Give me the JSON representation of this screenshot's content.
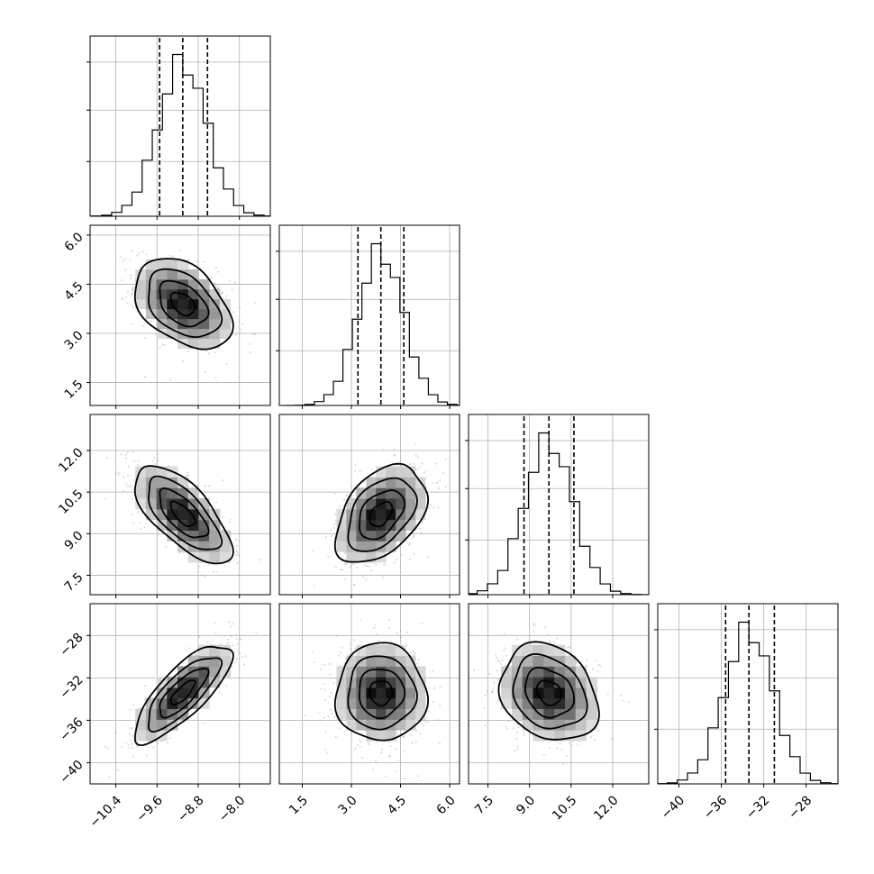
{
  "chart_data": {
    "type": "corner",
    "parameters": [
      {
        "index": 0,
        "range": [
          -10.9,
          -7.4
        ],
        "ticks": [
          -10.4,
          -9.6,
          -8.8,
          -8.0
        ],
        "tick_labels": [
          "−10.4",
          "−9.6",
          "−8.8",
          "−8.0"
        ],
        "quantiles": [
          -9.55,
          -9.1,
          -8.62
        ],
        "median": -9.1,
        "sigma": 0.47
      },
      {
        "index": 1,
        "range": [
          0.8,
          6.3
        ],
        "ticks": [
          1.5,
          3.0,
          4.5,
          6.0
        ],
        "tick_labels": [
          "1.5",
          "3.0",
          "4.5",
          "6.0"
        ],
        "quantiles": [
          3.2,
          3.9,
          4.6
        ],
        "median": 3.9,
        "sigma": 0.69
      },
      {
        "index": 2,
        "range": [
          6.8,
          13.3
        ],
        "ticks": [
          7.5,
          9.0,
          10.5,
          12.0
        ],
        "tick_labels": [
          "7.5",
          "9.0",
          "10.5",
          "12.0"
        ],
        "quantiles": [
          8.8,
          9.7,
          10.6
        ],
        "median": 9.7,
        "sigma": 0.88
      },
      {
        "index": 3,
        "range": [
          -42,
          -25
        ],
        "ticks": [
          -40,
          -36,
          -32,
          -28
        ],
        "tick_labels": [
          "−40",
          "−36",
          "−32",
          "−28"
        ],
        "quantiles": [
          -35.6,
          -33.4,
          -31.0
        ],
        "median": -33.4,
        "sigma": 2.3
      }
    ],
    "correlations": {
      "1_0": -0.4,
      "2_0": -0.68,
      "2_1": 0.42,
      "3_0": 0.78,
      "3_1": 0.0,
      "3_2": -0.22
    },
    "contour_sigma_levels": [
      0.5,
      1.0,
      1.5,
      2.0
    ],
    "hist_bins": 20,
    "grid": true,
    "quantile_line_style": "dashed"
  }
}
